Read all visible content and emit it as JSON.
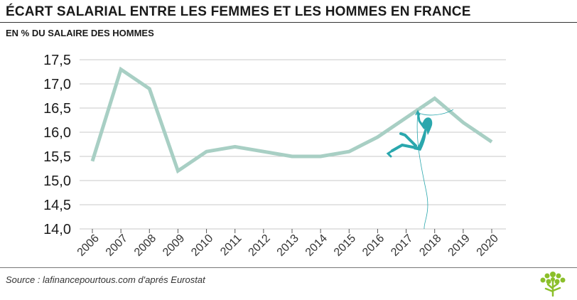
{
  "header": {
    "title": "ÉCART SALARIAL ENTRE LES FEMMES ET LES HOMMES EN FRANCE",
    "subtitle": "EN % DU SALAIRE DES HOMMES"
  },
  "footer": {
    "source": "Source : lafinancepourtous.com d'aprés Eurostat"
  },
  "chart_data": {
    "type": "line",
    "title": "ÉCART SALARIAL ENTRE LES FEMMES ET LES HOMMES EN FRANCE",
    "subtitle": "EN % DU SALAIRE DES HOMMES",
    "xlabel": "",
    "ylabel": "",
    "categories": [
      "2006",
      "2007",
      "2008",
      "2009",
      "2010",
      "2011",
      "2012",
      "2013",
      "2014",
      "2015",
      "2016",
      "2017",
      "2018",
      "2019",
      "2020"
    ],
    "series": [
      {
        "values": [
          15.4,
          17.3,
          16.9,
          15.2,
          15.6,
          15.7,
          15.6,
          15.5,
          15.5,
          15.6,
          15.9,
          16.3,
          16.7,
          16.2,
          15.8
        ]
      }
    ],
    "ylim": [
      14.0,
      17.5
    ],
    "yticks": [
      "14,0",
      "14,5",
      "15,0",
      "15,5",
      "16,0",
      "16,5",
      "17,0",
      "17,5"
    ],
    "grid": true,
    "legend": "none",
    "colors": {
      "line": "#a8cfc4",
      "grid": "#c8c8c8",
      "illustration": "#2aa7ad",
      "logo": "#8bbf2a"
    }
  }
}
